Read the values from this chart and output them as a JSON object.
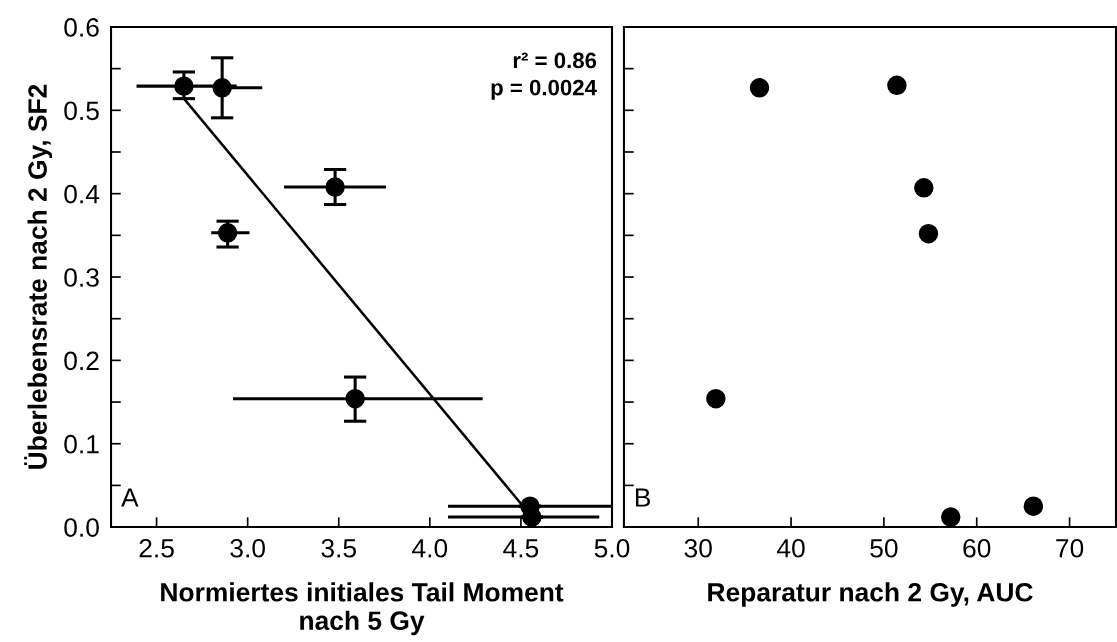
{
  "chart_data": [
    {
      "type": "scatter",
      "xlabel": "Normiertes initiales Tail Moment\nnach 5 Gy",
      "ylabel": "Überlebensrate nach 2 Gy, SF2",
      "xlim": [
        2.25,
        5.0
      ],
      "xticks": [
        2.5,
        {
          "value": 3.0,
          "label": "3.0"
        },
        3.5,
        {
          "value": 4.0,
          "label": "4.0"
        },
        4.5,
        {
          "value": 5.0,
          "label": "5.0"
        }
      ],
      "ylim": [
        0.0,
        0.6
      ],
      "yticks": [
        {
          "value": 0.0,
          "label": "0.0"
        },
        {
          "value": 0.05,
          "label": null
        },
        0.1,
        {
          "value": 0.15,
          "label": null
        },
        0.2,
        {
          "value": 0.25,
          "label": null
        },
        0.3,
        {
          "value": 0.35,
          "label": null
        },
        0.4,
        {
          "value": 0.45,
          "label": null
        },
        0.5,
        {
          "value": 0.55,
          "label": null
        },
        0.6
      ],
      "grid": false,
      "legend": false,
      "series": [
        {
          "marker": "circle",
          "color": "#000000",
          "x": [
            2.65,
            2.86,
            2.89,
            3.48,
            3.59,
            4.55,
            4.56
          ],
          "values": [
            0.529,
            0.527,
            0.353,
            0.408,
            0.154,
            0.025,
            0.012
          ],
          "errors": [
            [
              0.514,
              0.546
            ],
            [
              0.491,
              0.563
            ],
            [
              0.336,
              0.367
            ],
            [
              0.387,
              0.429
            ],
            [
              0.127,
              0.18
            ],
            null,
            null
          ],
          "xerrors": [
            [
              2.39,
              2.94
            ],
            [
              2.86,
              3.08
            ],
            [
              2.8,
              3.01
            ],
            [
              3.2,
              3.76
            ],
            [
              2.92,
              4.29
            ],
            [
              4.1,
              5.0
            ],
            [
              4.1,
              4.93
            ]
          ]
        },
        {
          "type": "line",
          "color": "#000000",
          "line_style": "solid",
          "x": [
            2.65,
            4.55
          ],
          "values": [
            0.514,
            0.015
          ]
        }
      ],
      "annotations": [
        "r² = 0.86\np = 0.0024",
        "A"
      ]
    },
    {
      "type": "scatter",
      "xlabel": "Reparatur nach 2 Gy, AUC",
      "xlim": [
        22,
        75
      ],
      "xticks": [
        30,
        40,
        50,
        60,
        70
      ],
      "ylim": [
        0.0,
        0.6
      ],
      "yticks": [
        {
          "value": 0.0,
          "label": null
        },
        {
          "value": 0.05,
          "label": null
        },
        {
          "value": 0.1,
          "label": null
        },
        {
          "value": 0.15,
          "label": null
        },
        {
          "value": 0.2,
          "label": null
        },
        {
          "value": 0.25,
          "label": null
        },
        {
          "value": 0.3,
          "label": null
        },
        {
          "value": 0.35,
          "label": null
        },
        {
          "value": 0.4,
          "label": null
        },
        {
          "value": 0.45,
          "label": null
        },
        {
          "value": 0.5,
          "label": null
        },
        {
          "value": 0.55,
          "label": null
        },
        {
          "value": 0.6,
          "label": null
        }
      ],
      "tick_labels": "x",
      "grid": false,
      "legend": false,
      "marker": "circle",
      "series": [
        {
          "color": "#000000",
          "x": [
            36.6,
            51.4,
            54.3,
            54.8,
            31.9,
            57.2,
            66.1
          ],
          "values": [
            0.527,
            0.53,
            0.407,
            0.352,
            0.154,
            0.012,
            0.025
          ]
        }
      ],
      "annotations": [
        "B"
      ]
    }
  ]
}
